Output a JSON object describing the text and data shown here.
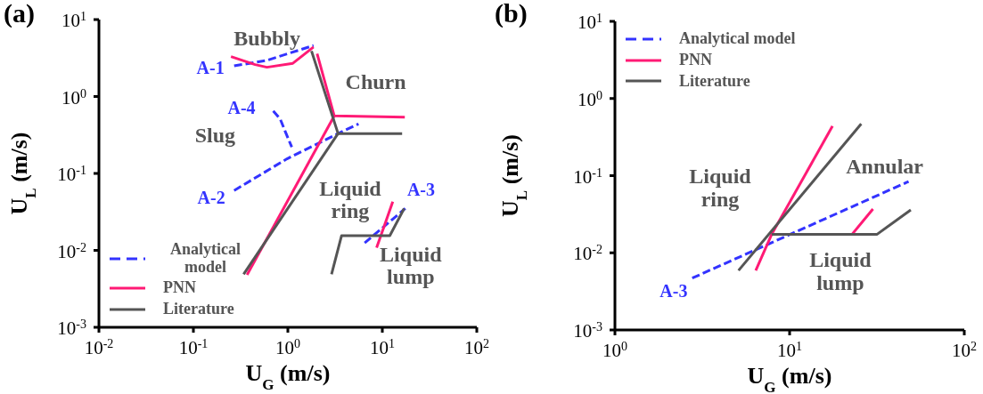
{
  "chart_data": [
    {
      "type": "line",
      "title": "(a)",
      "xlabel": "U$_{G}$ (m/s)",
      "ylabel": "U$_{L}$ (m/s)",
      "log": "xy",
      "marker": "none",
      "legend": "bottom left",
      "xlim": [
        0.01,
        100
      ],
      "ylim": [
        0.001,
        10
      ],
      "xticks": [
        {
          "value": 0.01,
          "label": "10$^{-2}$"
        },
        {
          "value": 0.1,
          "label": "10$^{-1}$"
        },
        {
          "value": 1,
          "label": "10$^{0}$"
        },
        {
          "value": 10,
          "label": "10$^{1}$"
        },
        {
          "value": 100,
          "label": "10$^{2}$"
        }
      ],
      "yticks": [
        {
          "value": 0.001,
          "label": "10$^{-3}$"
        },
        {
          "value": 0.01,
          "label": "10$^{-2}$"
        },
        {
          "value": 0.1,
          "label": "10$^{-1}$"
        },
        {
          "value": 1,
          "label": "10$^{0}$"
        },
        {
          "value": 10,
          "label": "10$^{1}$"
        }
      ],
      "series": [
        {
          "name": "Analytical model",
          "color": "#3333ff",
          "line_style": "dashed",
          "x": [
            0.27,
            0.6,
            1.87
          ],
          "values": [
            2.5,
            2.95,
            4.6
          ]
        },
        {
          "color": "#3333ff",
          "line_style": "dashed",
          "x": [
            0.27,
            0.98,
            3.4,
            5.6
          ],
          "values": [
            0.06,
            0.155,
            0.33,
            0.44
          ]
        },
        {
          "color": "#3333ff",
          "line_style": "dashed",
          "x": [
            0.7,
            0.83,
            0.93,
            1.1
          ],
          "values": [
            0.65,
            0.51,
            0.36,
            0.22
          ]
        },
        {
          "color": "#3333ff",
          "line_style": "dashed",
          "x": [
            6.5,
            17.5
          ],
          "values": [
            0.0125,
            0.035
          ]
        },
        {
          "name": "PNN",
          "color": "#ff1a75",
          "line_style": "solid",
          "x": [
            0.25,
            0.45,
            0.6,
            1.13,
            1.87
          ],
          "values": [
            3.3,
            2.6,
            2.4,
            2.7,
            4.4
          ]
        },
        {
          "color": "#ff1a75",
          "line_style": "solid",
          "x": [
            2.04,
            3.1,
            17.3
          ],
          "values": [
            3.6,
            0.56,
            0.54
          ]
        },
        {
          "color": "#ff1a75",
          "line_style": "solid",
          "x": [
            0.37,
            3.1
          ],
          "values": [
            0.0048,
            0.56
          ]
        },
        {
          "color": "#ff1a75",
          "line_style": "solid",
          "x": [
            8.7,
            12.9
          ],
          "values": [
            0.0108,
            0.043
          ]
        },
        {
          "name": "Literature",
          "color": "#555555",
          "line_style": "solid",
          "x": [
            1.78,
            3.4,
            16.2
          ],
          "values": [
            3.9,
            0.33,
            0.33
          ]
        },
        {
          "color": "#555555",
          "line_style": "solid",
          "x": [
            0.34,
            3.4
          ],
          "values": [
            0.0049,
            0.33
          ]
        },
        {
          "color": "#555555",
          "line_style": "solid",
          "x": [
            2.9,
            3.7,
            12,
            17
          ],
          "values": [
            0.0049,
            0.0155,
            0.0155,
            0.035
          ]
        }
      ],
      "annotations": [
        "Bubbly",
        "Churn",
        "Slug",
        "Liquid ring",
        "Liquid lump",
        "A-1",
        "A-2",
        "A-3",
        "A-4"
      ]
    },
    {
      "type": "line",
      "title": "(b)",
      "xlabel": "U$_{G}$ (m/s)",
      "ylabel": "U$_{L}$ (m/s)",
      "log": "xy",
      "marker": "none",
      "legend": "top left",
      "xlim": [
        1,
        100
      ],
      "ylim": [
        0.001,
        10
      ],
      "xticks": [
        {
          "value": 1,
          "label": "10$^{0}$"
        },
        {
          "value": 10,
          "label": "10$^{1}$"
        },
        {
          "value": 100,
          "label": "10$^{2}$"
        }
      ],
      "yticks": [
        {
          "value": 0.001,
          "label": "10$^{-3}$"
        },
        {
          "value": 0.01,
          "label": "10$^{-2}$"
        },
        {
          "value": 0.1,
          "label": "10$^{-1}$"
        },
        {
          "value": 1,
          "label": "10$^{0}$"
        },
        {
          "value": 10,
          "label": "10$^{1}$"
        }
      ],
      "series": [
        {
          "name": "Analytical model",
          "color": "#3333ff",
          "line_style": "dashed",
          "x": [
            2.77,
            48
          ],
          "values": [
            0.0047,
            0.084
          ]
        },
        {
          "name": "PNN",
          "color": "#ff1a75",
          "line_style": "solid",
          "x": [
            6.4,
            7.9,
            22.8,
            30
          ],
          "values": [
            0.0059,
            0.0174,
            0.0174,
            0.037
          ]
        },
        {
          "color": "#ff1a75",
          "line_style": "solid",
          "x": [
            7.9,
            17.6
          ],
          "values": [
            0.0174,
            0.44
          ]
        },
        {
          "name": "Literature",
          "color": "#555555",
          "line_style": "solid",
          "x": [
            5.1,
            25.7
          ],
          "values": [
            0.0059,
            0.47
          ]
        },
        {
          "color": "#555555",
          "line_style": "solid",
          "x": [
            7.9,
            31.7,
            49.4
          ],
          "values": [
            0.0174,
            0.0174,
            0.036
          ]
        }
      ],
      "annotations": [
        "Liquid ring",
        "Annular",
        "Liquid lump",
        "A-3"
      ]
    }
  ]
}
